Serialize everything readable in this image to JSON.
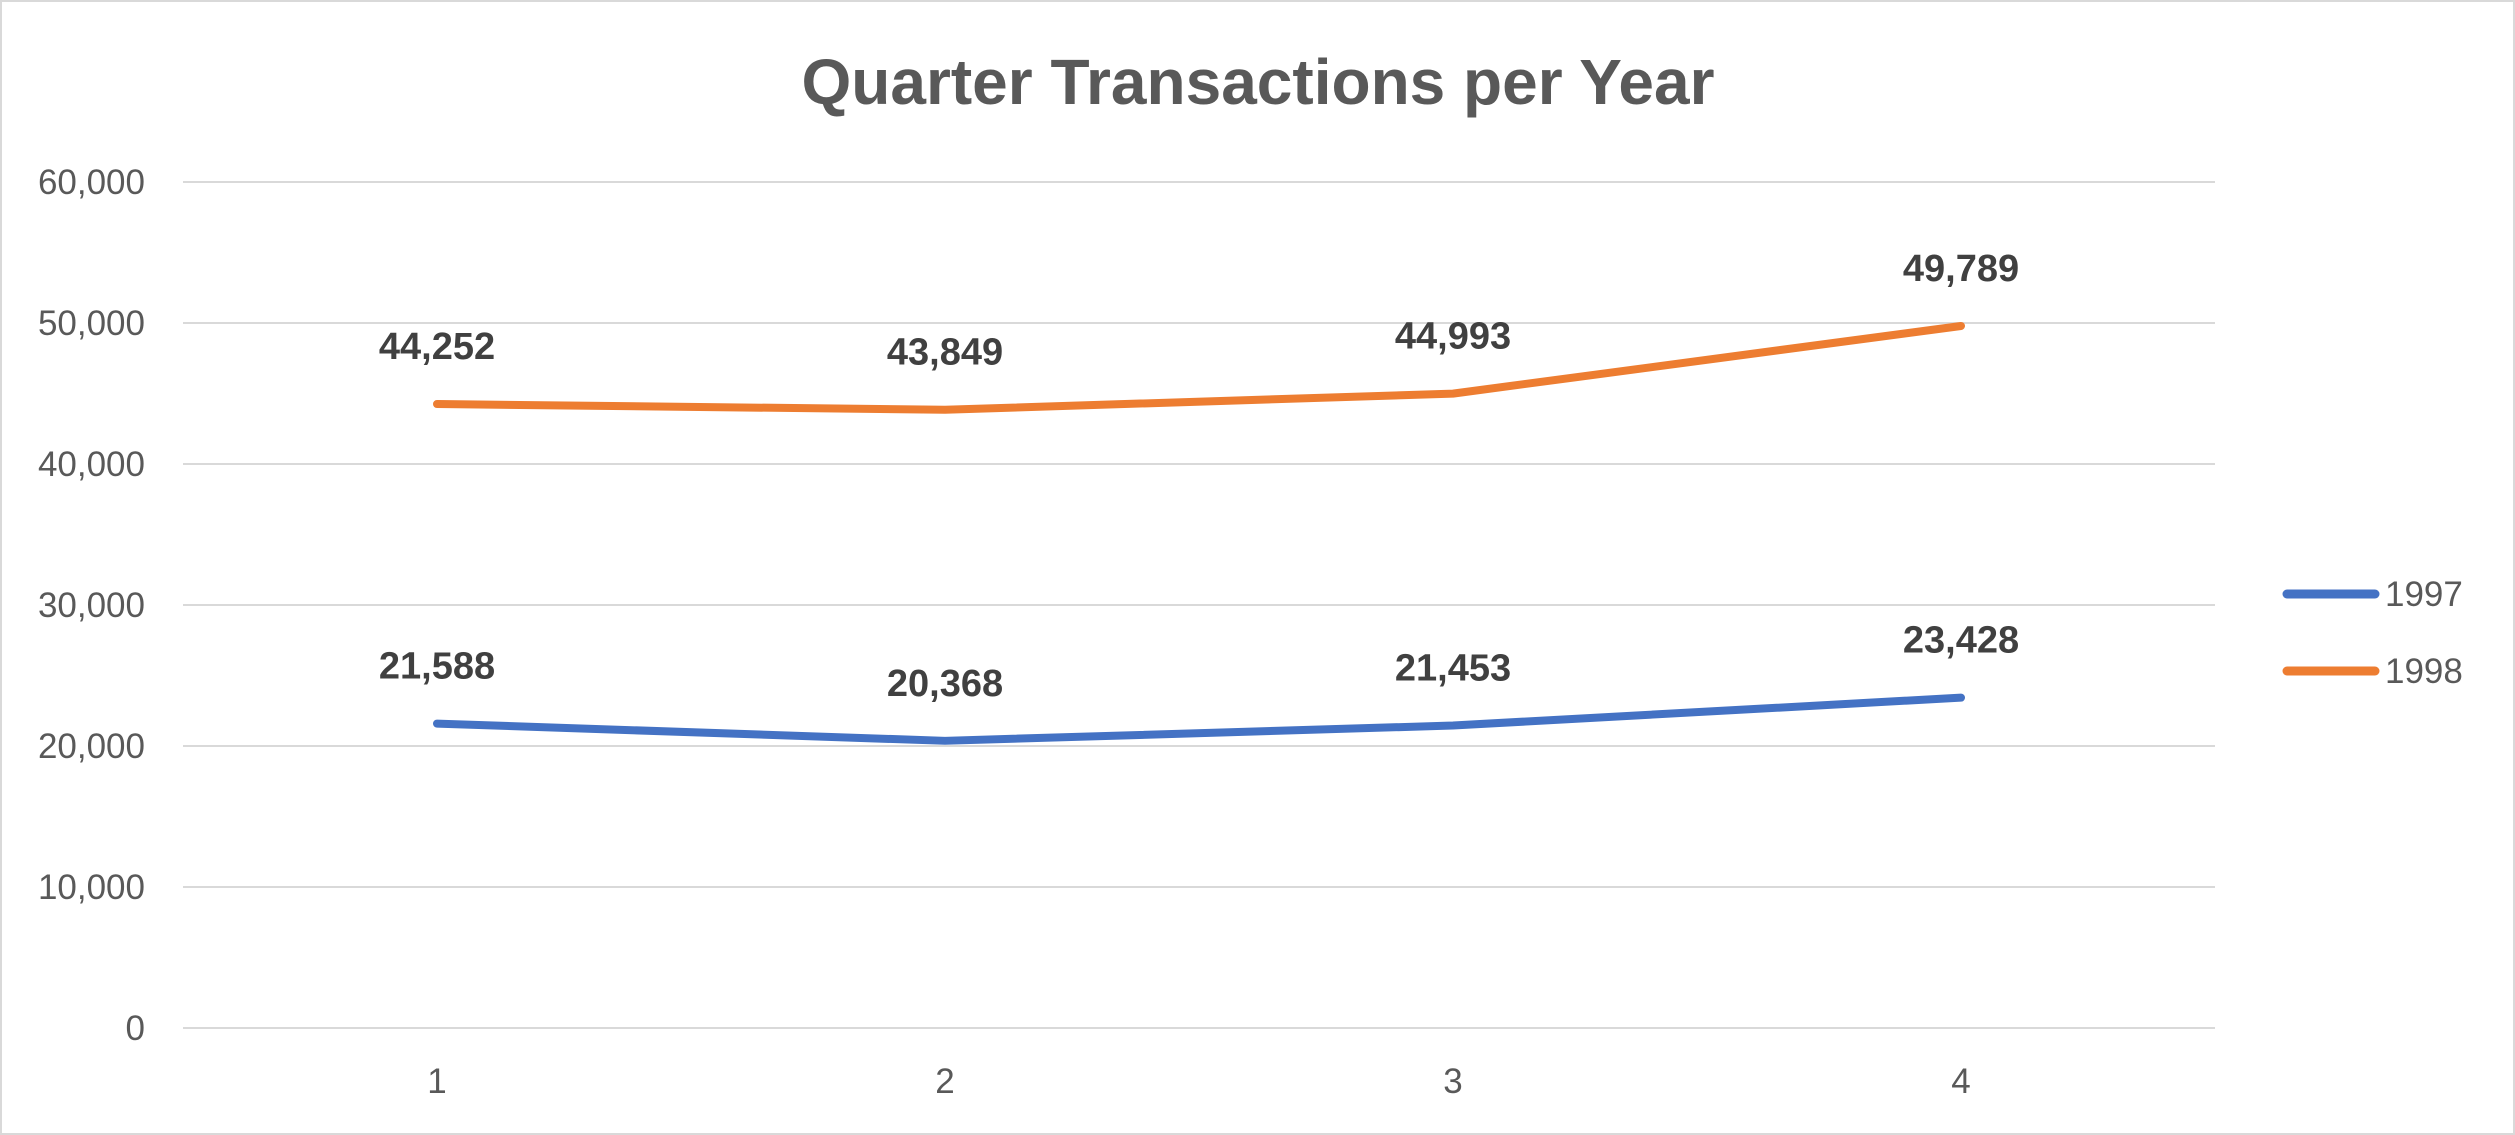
{
  "chart_data": {
    "type": "line",
    "title": "Quarter Transactions per Year",
    "xlabel": "",
    "ylabel": "",
    "categories": [
      "1",
      "2",
      "3",
      "4"
    ],
    "ylim": [
      0,
      60000
    ],
    "yticks": [
      0,
      10000,
      20000,
      30000,
      40000,
      50000,
      60000
    ],
    "ytick_labels": [
      "0",
      "10,000",
      "20,000",
      "30,000",
      "40,000",
      "50,000",
      "60,000"
    ],
    "grid": true,
    "legend_position": "right",
    "series": [
      {
        "name": "1997",
        "color": "#4472c4",
        "values": [
          21588,
          20368,
          21453,
          23428
        ],
        "labels": [
          "21,588",
          "20,368",
          "21,453",
          "23,428"
        ]
      },
      {
        "name": "1998",
        "color": "#ed7d31",
        "values": [
          44252,
          43849,
          44993,
          49789
        ],
        "labels": [
          "44,252",
          "43,849",
          "44,993",
          "49,789"
        ]
      }
    ]
  }
}
